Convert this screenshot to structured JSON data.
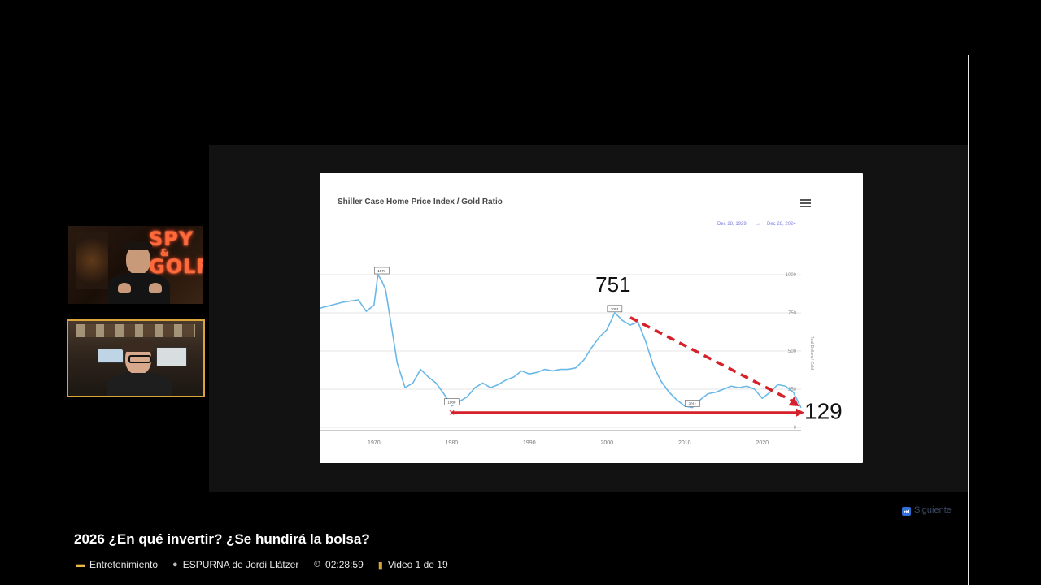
{
  "player": {
    "next_label": "Siguiente",
    "next_icon": "fast-forward-icon"
  },
  "video": {
    "title": "2026 ¿En qué invertir? ¿Se hundirá la bolsa?",
    "meta": {
      "category": "Entretenimiento",
      "category_icon": "folder-icon",
      "channel": "ESPURNA de Jordi Llátzer",
      "channel_icon": "person-icon",
      "duration": "02:28:59",
      "duration_icon": "stopwatch-icon",
      "position": "Video 1 de 19",
      "position_icon": "bar-chart-icon"
    }
  },
  "webcams": {
    "top_sign": "SPY",
    "top_sign_amp": "&",
    "top_sign_2": "GOLF"
  },
  "chart_data": {
    "type": "line",
    "title": "Shiller Case Home Price Index / Gold Ratio",
    "range_from": "Dec 28, 1929",
    "range_to": "Dec 28, 2024",
    "x_ticks": [
      "1970",
      "1980",
      "1990",
      "2000",
      "2010",
      "2020"
    ],
    "y_ticks": [
      "1000",
      "750",
      "500",
      "250",
      "0"
    ],
    "ylabel": "Real Dollars / Gold",
    "xlim": [
      1963,
      2025
    ],
    "ylim": [
      0,
      1000
    ],
    "series": [
      {
        "x": [
          1963,
          1966,
          1968,
          1969,
          1970,
          1970.5,
          1971,
          1971.5,
          1972,
          1973,
          1974,
          1975,
          1976,
          1977,
          1978,
          1979,
          1980,
          1981,
          1982,
          1983,
          1984,
          1985,
          1986,
          1987,
          1988,
          1989,
          1990,
          1991,
          1992,
          1993,
          1994,
          1995,
          1996,
          1997,
          1998,
          1999,
          2000,
          2001,
          2002,
          2003,
          2004,
          2005,
          2006,
          2007,
          2008,
          2009,
          2010,
          2011,
          2012,
          2013,
          2014,
          2015,
          2016,
          2017,
          2018,
          2019,
          2020,
          2021,
          2022,
          2023,
          2024,
          2025
        ],
        "y": [
          780,
          820,
          835,
          760,
          800,
          1000,
          960,
          900,
          740,
          420,
          260,
          290,
          380,
          330,
          290,
          220,
          140,
          170,
          200,
          260,
          290,
          260,
          280,
          310,
          330,
          370,
          350,
          360,
          380,
          370,
          380,
          380,
          390,
          440,
          520,
          590,
          640,
          751,
          700,
          670,
          690,
          560,
          400,
          300,
          230,
          180,
          140,
          130,
          180,
          220,
          230,
          250,
          270,
          260,
          270,
          250,
          190,
          230,
          280,
          270,
          230,
          129
        ]
      }
    ],
    "annotations": {
      "peak_label": "751",
      "current_label": "129",
      "flags": [
        {
          "label": "1971",
          "x": 1971,
          "y": 1000
        },
        {
          "label": "1980",
          "x": 1980,
          "y": 140
        },
        {
          "label": "2001",
          "x": 2001,
          "y": 751
        },
        {
          "label": "2011",
          "x": 2011,
          "y": 130
        }
      ]
    },
    "colors": {
      "line": "#6ab8e8",
      "arrow": "#d6202a",
      "grid": "#e6e6e6"
    }
  }
}
